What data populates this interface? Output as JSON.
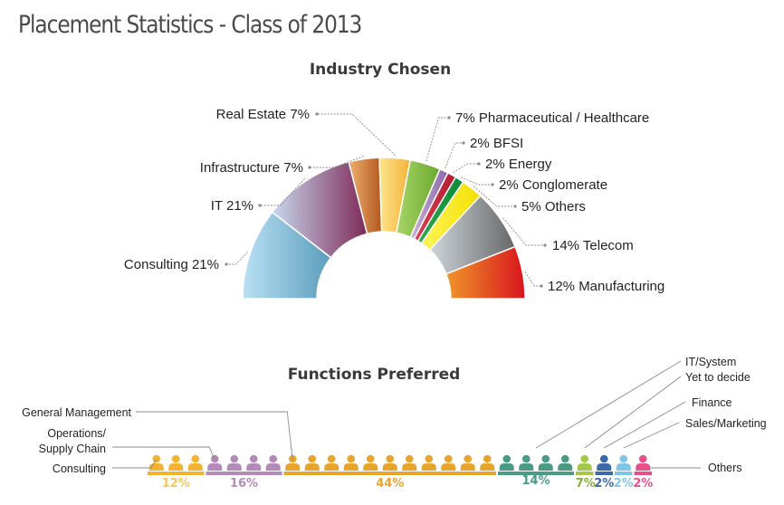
{
  "title": "Placement Statistics - Class of 2013",
  "colors": {
    "leader": "#8a8a8a",
    "bar_text": "#231f20"
  },
  "chart_data": [
    {
      "type": "pie",
      "title": "Industry Chosen",
      "slices": [
        {
          "label": "Consulting 21%",
          "value": 21,
          "color_a": "#b9e1f3",
          "color_b": "#5b9cbc"
        },
        {
          "label": "IT 21%",
          "value": 21,
          "color_a": "#c8d8ee",
          "color_b": "#7e2a58"
        },
        {
          "label": "Infrastructure 7%",
          "value": 7,
          "color_a": "#eeb070",
          "color_b": "#b3581e"
        },
        {
          "label": "Real Estate 7%",
          "value": 7,
          "color_a": "#fde58a",
          "color_b": "#f6b23a"
        },
        {
          "label": "7% Pharmaceutical / Healthcare",
          "value": 7,
          "color_a": "#a7d567",
          "color_b": "#6aa82e"
        },
        {
          "label": "2% BFSI",
          "value": 2,
          "color_a": "#cbb0d8",
          "color_b": "#8a6aa8"
        },
        {
          "label": "2% Energy",
          "value": 2,
          "color_a": "#e04050",
          "color_b": "#b01c30"
        },
        {
          "label": "2% Conglomerate",
          "value": 2,
          "color_a": "#2fa94a",
          "color_b": "#0a8a3a"
        },
        {
          "label": "5% Others",
          "value": 5,
          "color_a": "#fff45a",
          "color_b": "#f2e000"
        },
        {
          "label": "14% Telecom",
          "value": 14,
          "color_a": "#cfd6db",
          "color_b": "#666666"
        },
        {
          "label": "12% Manufacturing",
          "value": 12,
          "color_a": "#f0962a",
          "color_b": "#d8141e"
        }
      ]
    },
    {
      "type": "bar",
      "title": "Functions Preferred",
      "categories": [
        {
          "name": "Consulting",
          "pct_label": "12%",
          "value": 12,
          "icons": 3,
          "color": "#f3b331",
          "pct_color": "#f6c65a"
        },
        {
          "name": "Operations/\nSupply Chain",
          "pct_label": "16%",
          "value": 16,
          "icons": 4,
          "color": "#b48ab8",
          "pct_color": "#b48ab8"
        },
        {
          "name": "General Management",
          "pct_label": "44%",
          "value": 44,
          "icons": 11,
          "color": "#e8a42c",
          "pct_color": "#e8a42c"
        },
        {
          "name": "IT/System",
          "pct_label": "14%",
          "value": 14,
          "icons": 4,
          "color": "#4a9a86",
          "pct_color": "#4a9a86"
        },
        {
          "name": "Yet to decide",
          "pct_label": "7%",
          "value": 7,
          "icons": 1,
          "color": "#a6c84a",
          "pct_color": "#86b03a"
        },
        {
          "name": "Finance",
          "pct_label": "2%",
          "value": 2,
          "icons": 1,
          "color": "#3b6aa8",
          "pct_color": "#3b6aa8"
        },
        {
          "name": "Sales/Marketing",
          "pct_label": "2%",
          "value": 2,
          "icons": 1,
          "color": "#7ec6e6",
          "pct_color": "#7ec6e6"
        },
        {
          "name": "Others",
          "pct_label": "2%",
          "value": 2,
          "icons": 1,
          "color": "#e8508a",
          "pct_color": "#e8508a"
        }
      ]
    }
  ]
}
